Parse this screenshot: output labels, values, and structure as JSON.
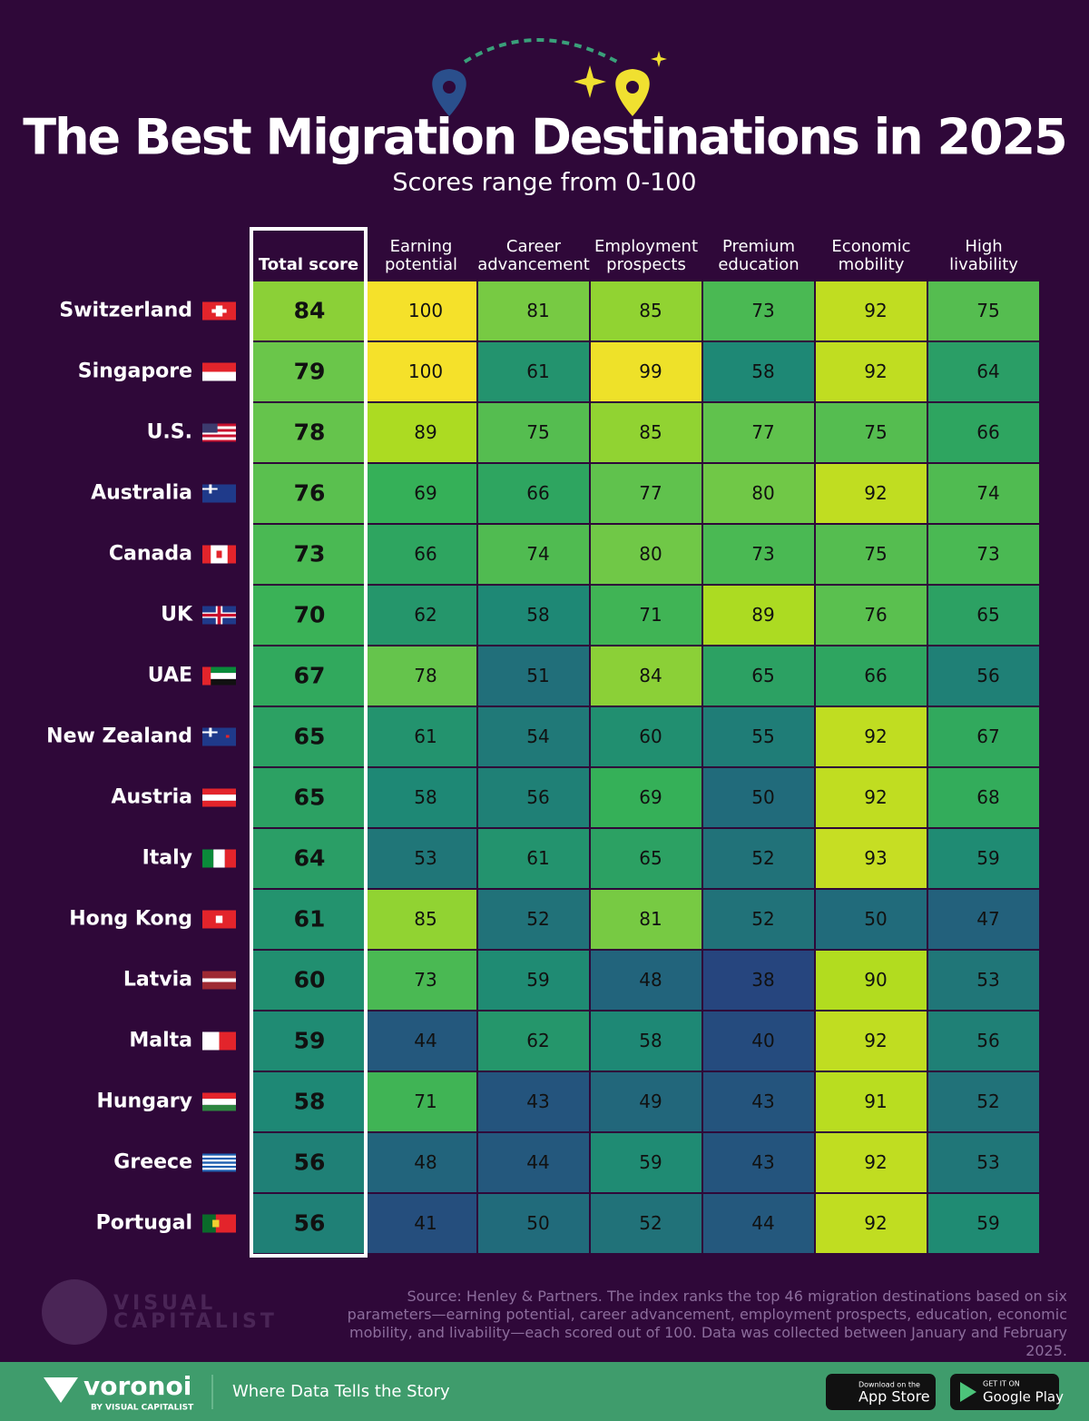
{
  "chart_data": {
    "type": "heatmap",
    "title": "The Best Migration Destinations in 2025",
    "subtitle": "Scores range from 0-100",
    "categories": [
      "Switzerland",
      "Singapore",
      "U.S.",
      "Australia",
      "Canada",
      "UK",
      "UAE",
      "New Zealand",
      "Austria",
      "Italy",
      "Hong Kong",
      "Latvia",
      "Malta",
      "Hungary",
      "Greece",
      "Portugal"
    ],
    "colorscale": [
      "#26457e",
      "#22657c",
      "#1e8a74",
      "#35b058",
      "#6cc74a",
      "#b0dc1f",
      "#f5e12a"
    ],
    "series": [
      {
        "name": "Total score",
        "values": [
          84,
          79,
          78,
          76,
          73,
          70,
          67,
          65,
          65,
          64,
          61,
          60,
          59,
          58,
          56,
          56
        ]
      },
      {
        "name": "Earning potential",
        "values": [
          100,
          100,
          89,
          69,
          66,
          62,
          78,
          61,
          58,
          53,
          85,
          73,
          44,
          71,
          48,
          41
        ]
      },
      {
        "name": "Career advancement",
        "values": [
          81,
          61,
          75,
          66,
          74,
          58,
          51,
          54,
          56,
          61,
          52,
          59,
          62,
          43,
          44,
          50
        ]
      },
      {
        "name": "Employment prospects",
        "values": [
          85,
          99,
          85,
          77,
          80,
          71,
          84,
          60,
          69,
          65,
          81,
          48,
          58,
          49,
          59,
          52
        ]
      },
      {
        "name": "Premium education",
        "values": [
          73,
          58,
          77,
          80,
          73,
          89,
          65,
          55,
          50,
          52,
          52,
          38,
          40,
          43,
          43,
          44
        ]
      },
      {
        "name": "Economic mobility",
        "values": [
          92,
          92,
          75,
          92,
          75,
          76,
          66,
          92,
          92,
          93,
          50,
          90,
          92,
          91,
          92,
          92
        ]
      },
      {
        "name": "High livability",
        "values": [
          75,
          64,
          66,
          74,
          73,
          65,
          56,
          67,
          68,
          59,
          47,
          53,
          56,
          52,
          53,
          59
        ]
      }
    ],
    "source": "Source: Henley & Partners. The index ranks the top 46 migration destinations based on six parameters—earning potential, career advancement, employment prospects, education, economic mobility, and livability—each scored out of 100. Data was collected between January and February 2025."
  },
  "footer": {
    "watermark_top": "VISUAL",
    "watermark_bottom": "CAPITALIST",
    "brand": "voronoi",
    "brand_sub": "BY VISUAL CAPITALIST",
    "tagline": "Where Data Tells the Story",
    "app_store_small": "Download on the",
    "app_store": "App Store",
    "google_small": "GET IT ON",
    "google": "Google Play"
  }
}
